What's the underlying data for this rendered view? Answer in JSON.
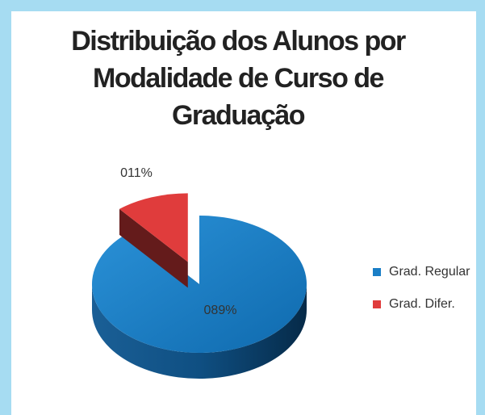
{
  "chart_data": {
    "type": "pie",
    "title": "Distribuição dos Alunos por Modalidade de Curso de Graduação",
    "categories": [
      "Grad. Regular",
      "Grad. Difer."
    ],
    "values": [
      89,
      11
    ],
    "value_labels": [
      "089%",
      "011%"
    ],
    "colors": [
      "#1a7ec6",
      "#e03c3c"
    ],
    "legend": "right"
  }
}
